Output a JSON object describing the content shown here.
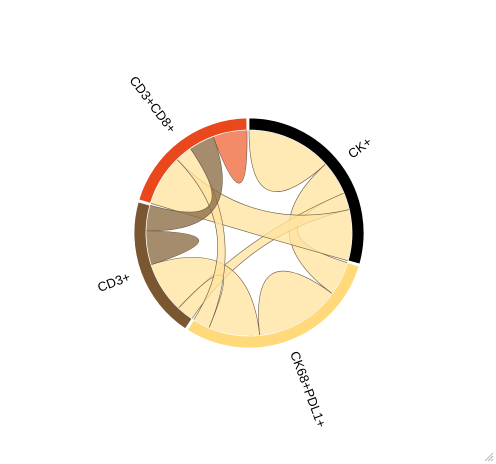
{
  "chart_data": {
    "type": "chord",
    "title": "",
    "groups": [
      {
        "name": "CK+",
        "color": "#000000",
        "chord_color": "#ffe39f"
      },
      {
        "name": "CK68+PDL1+",
        "color": "#ffd97a",
        "chord_color": "#ffe39f"
      },
      {
        "name": "CD3+",
        "color": "#7a5730",
        "chord_color": "#8c6b44"
      },
      {
        "name": "CD3+CD8+",
        "color": "#e9481d",
        "chord_color": "#f06a3e"
      }
    ],
    "matrix": [
      [
        1.0,
        0.4,
        0.2,
        0.6
      ],
      [
        0.4,
        1.0,
        0.6,
        0.2
      ],
      [
        0.2,
        0.6,
        0.4,
        0.3
      ],
      [
        0.6,
        0.2,
        0.3,
        0.4
      ]
    ]
  }
}
